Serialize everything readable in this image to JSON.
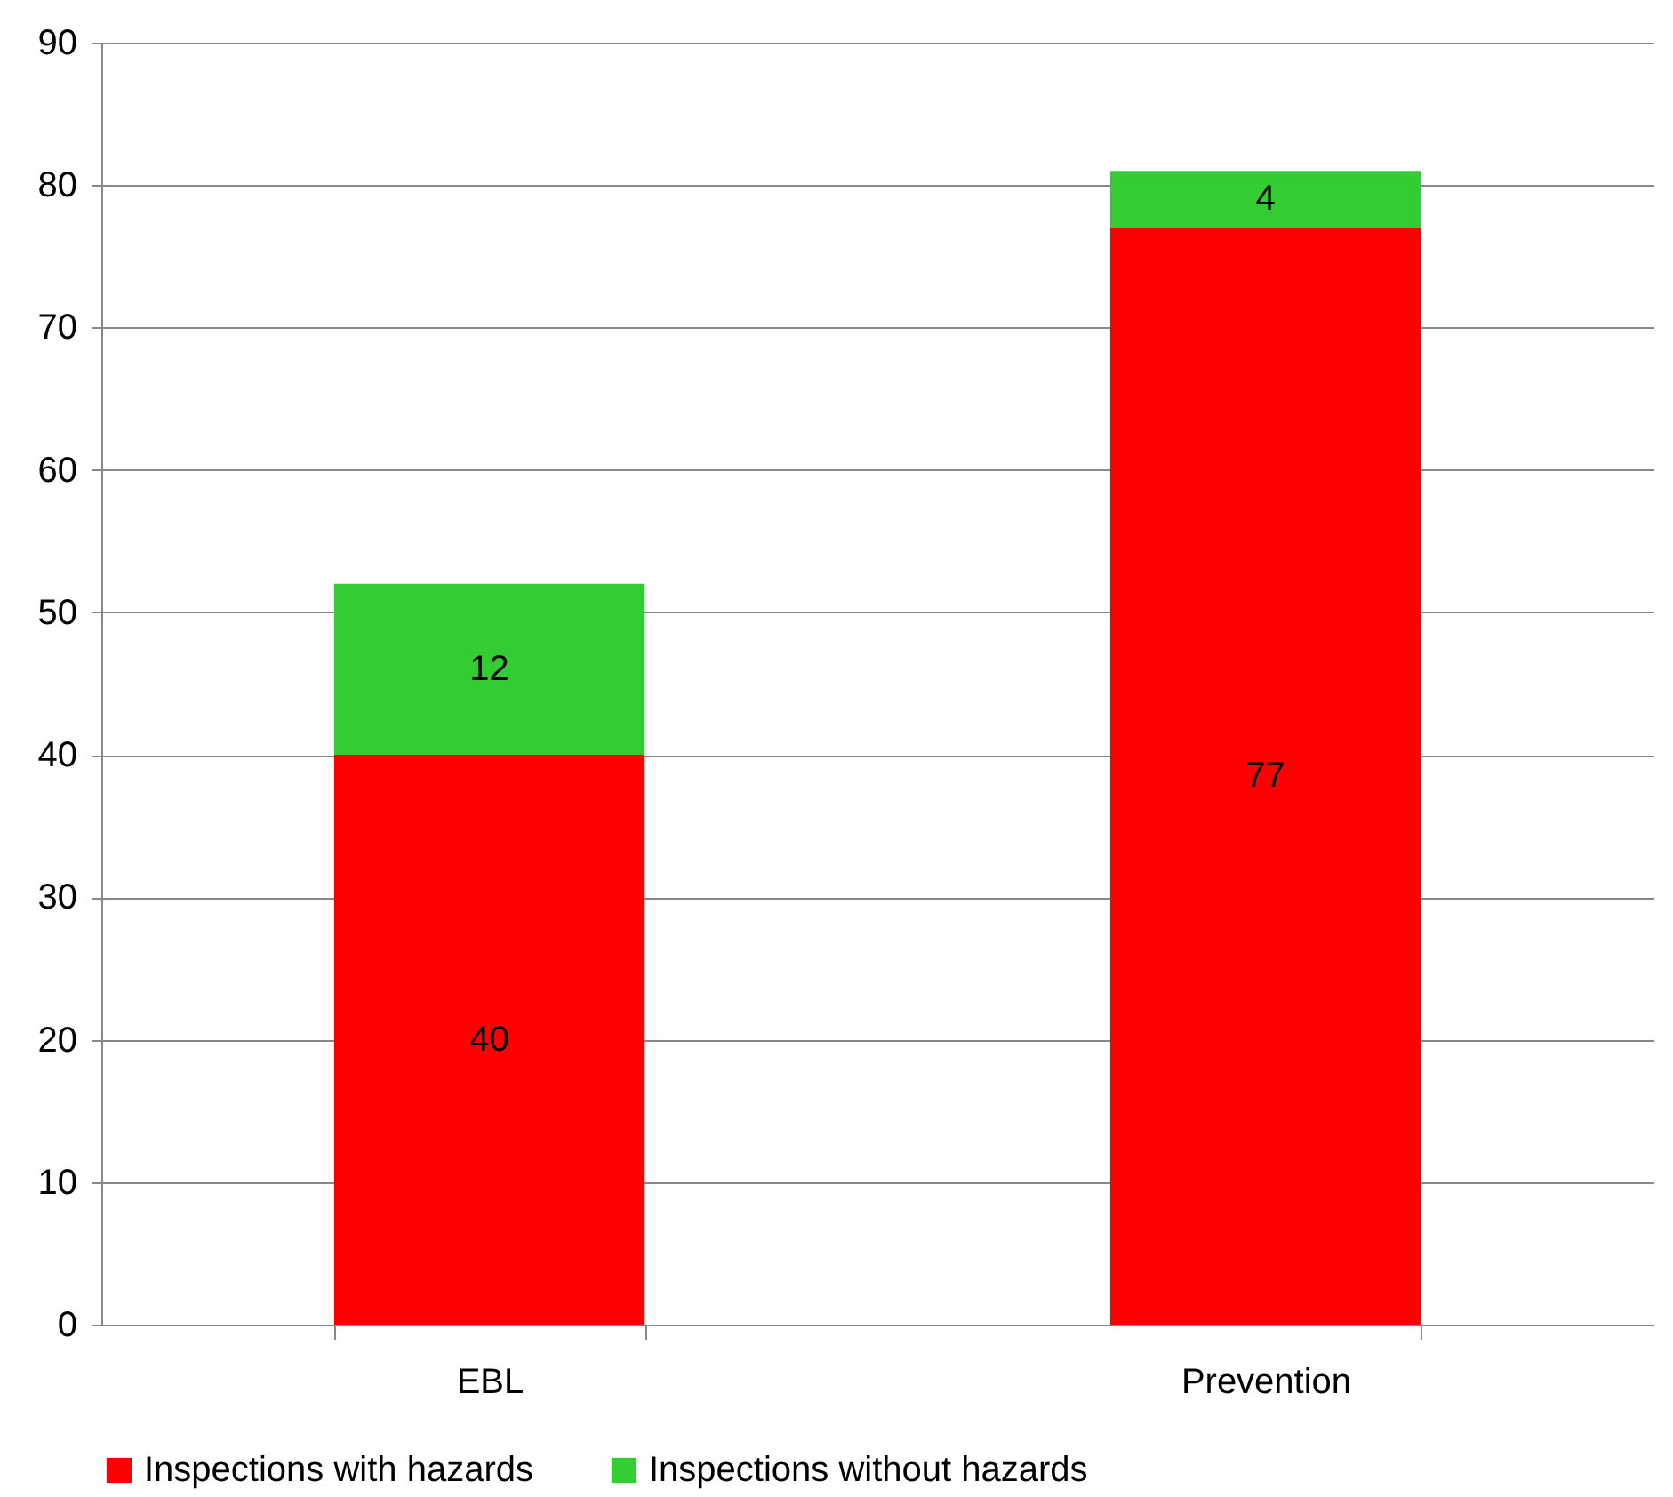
{
  "chart_data": {
    "type": "bar",
    "stacked": true,
    "categories": [
      "EBL",
      "Prevention"
    ],
    "series": [
      {
        "name": "Inspections with hazards",
        "color": "#ff0000",
        "values": [
          40,
          77
        ]
      },
      {
        "name": "Inspections without hazards",
        "color": "#33cc33",
        "values": [
          12,
          4
        ]
      }
    ],
    "ylim": [
      0,
      90
    ],
    "yticks": [
      0,
      10,
      20,
      30,
      40,
      50,
      60,
      70,
      80,
      90
    ],
    "grid": "y",
    "legend": "bottom",
    "data_labels": true
  }
}
